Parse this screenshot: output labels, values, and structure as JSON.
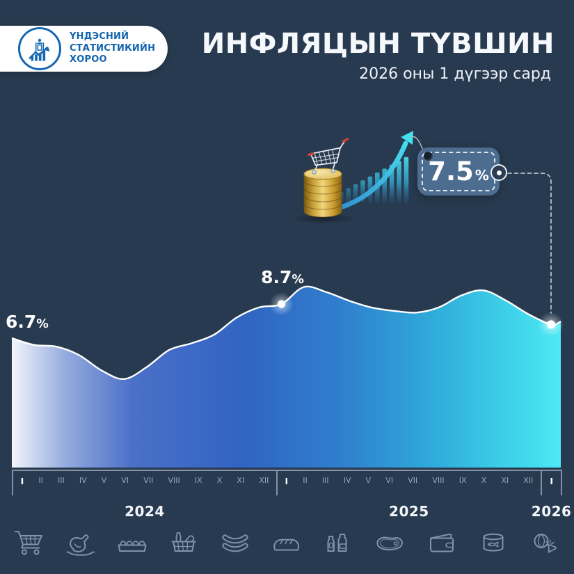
{
  "header": {
    "logo": {
      "line1": "ҮНДЭСНИЙ",
      "line2": "СТАТИСТИКИЙН",
      "line3": "ХОРОО"
    },
    "title": "ИНФЛЯЦЫН ТҮВШИН",
    "subtitle": "2026 оны 1 дүгээр сард"
  },
  "callout": {
    "value": "7.5",
    "unit": "%"
  },
  "annotations": {
    "start": {
      "value": "6.7",
      "unit": "%"
    },
    "peak": {
      "value": "8.7",
      "unit": "%"
    }
  },
  "chart_data": {
    "type": "area",
    "title": "ИНФЛЯЦЫН ТҮВШИН",
    "subtitle": "2026 оны 1 дүгээр сард",
    "unit": "%",
    "categories": [
      "2024-I",
      "2024-II",
      "2024-III",
      "2024-IV",
      "2024-V",
      "2024-VI",
      "2024-VII",
      "2024-VIII",
      "2024-IX",
      "2024-X",
      "2024-XI",
      "2024-XII",
      "2025-I",
      "2025-II",
      "2025-III",
      "2025-IV",
      "2025-V",
      "2025-VI",
      "2025-VII",
      "2025-VIII",
      "2025-IX",
      "2025-X",
      "2025-XI",
      "2025-XII",
      "2026-I"
    ],
    "values": [
      6.7,
      6.3,
      6.2,
      5.7,
      4.8,
      4.3,
      5.0,
      6.0,
      6.4,
      6.9,
      7.9,
      8.5,
      8.7,
      9.7,
      9.4,
      8.9,
      8.5,
      8.3,
      8.2,
      8.5,
      9.2,
      9.5,
      8.9,
      8.1,
      7.5
    ],
    "highlight_points": [
      {
        "index": 0,
        "label": "6.7%"
      },
      {
        "index": 12,
        "label": "8.7%"
      },
      {
        "index": 24,
        "label": "7.5%"
      }
    ],
    "axis": {
      "years": [
        {
          "label": "2024",
          "months": [
            "I",
            "II",
            "III",
            "IV",
            "V",
            "VI",
            "VII",
            "VIII",
            "IX",
            "X",
            "XI",
            "XII"
          ]
        },
        {
          "label": "2025",
          "months": [
            "I",
            "II",
            "III",
            "IV",
            "V",
            "VI",
            "VII",
            "VIII",
            "IX",
            "X",
            "XI",
            "XII"
          ]
        },
        {
          "label": "2026",
          "months": [
            "I"
          ]
        }
      ]
    },
    "ylim": [
      0,
      12
    ],
    "grid": false,
    "legend": false
  },
  "icons": [
    "shopping-cart",
    "roast-chicken",
    "egg-tray",
    "grocery-basket",
    "sausages",
    "bread-loaf",
    "beverages",
    "meat-steak",
    "wallet",
    "canned-fish",
    "vegetables"
  ],
  "colors": {
    "background": "#283a4f",
    "area_blue": "#3164c3",
    "area_cyan": "#45dff0",
    "line": "#ffffff",
    "tag_fill": "#4d6d90",
    "logo_blue": "#1164ae",
    "axis_gray": "#97a6ba"
  }
}
